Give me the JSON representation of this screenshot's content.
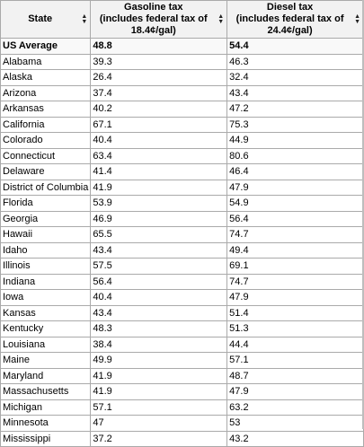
{
  "table": {
    "headers": [
      {
        "line1": "State",
        "line2": ""
      },
      {
        "line1": "Gasoline tax",
        "line2": "(includes federal tax of 18.4¢/gal)"
      },
      {
        "line1": "Diesel tax",
        "line2": "(includes federal tax of 24.4¢/gal)"
      }
    ],
    "sort_icon": "sort-up-down-icon",
    "rows": [
      {
        "state": "US Average",
        "gasoline": "48.8",
        "diesel": "54.4"
      },
      {
        "state": "Alabama",
        "gasoline": "39.3",
        "diesel": "46.3"
      },
      {
        "state": "Alaska",
        "gasoline": "26.4",
        "diesel": "32.4"
      },
      {
        "state": "Arizona",
        "gasoline": "37.4",
        "diesel": "43.4"
      },
      {
        "state": "Arkansas",
        "gasoline": "40.2",
        "diesel": "47.2"
      },
      {
        "state": "California",
        "gasoline": "67.1",
        "diesel": "75.3"
      },
      {
        "state": "Colorado",
        "gasoline": "40.4",
        "diesel": "44.9"
      },
      {
        "state": "Connecticut",
        "gasoline": "63.4",
        "diesel": "80.6"
      },
      {
        "state": "Delaware",
        "gasoline": "41.4",
        "diesel": "46.4"
      },
      {
        "state": "District of Columbia",
        "gasoline": "41.9",
        "diesel": "47.9"
      },
      {
        "state": "Florida",
        "gasoline": "53.9",
        "diesel": "54.9"
      },
      {
        "state": "Georgia",
        "gasoline": "46.9",
        "diesel": "56.4"
      },
      {
        "state": "Hawaii",
        "gasoline": "65.5",
        "diesel": "74.7"
      },
      {
        "state": "Idaho",
        "gasoline": "43.4",
        "diesel": "49.4"
      },
      {
        "state": "Illinois",
        "gasoline": "57.5",
        "diesel": "69.1"
      },
      {
        "state": "Indiana",
        "gasoline": "56.4",
        "diesel": "74.7"
      },
      {
        "state": "Iowa",
        "gasoline": "40.4",
        "diesel": "47.9"
      },
      {
        "state": "Kansas",
        "gasoline": "43.4",
        "diesel": "51.4"
      },
      {
        "state": "Kentucky",
        "gasoline": "48.3",
        "diesel": "51.3"
      },
      {
        "state": "Louisiana",
        "gasoline": "38.4",
        "diesel": "44.4"
      },
      {
        "state": "Maine",
        "gasoline": "49.9",
        "diesel": "57.1"
      },
      {
        "state": "Maryland",
        "gasoline": "41.9",
        "diesel": "48.7"
      },
      {
        "state": "Massachusetts",
        "gasoline": "41.9",
        "diesel": "47.9"
      },
      {
        "state": "Michigan",
        "gasoline": "57.1",
        "diesel": "63.2"
      },
      {
        "state": "Minnesota",
        "gasoline": "47",
        "diesel": "53"
      },
      {
        "state": "Mississippi",
        "gasoline": "37.2",
        "diesel": "43.2"
      }
    ]
  }
}
